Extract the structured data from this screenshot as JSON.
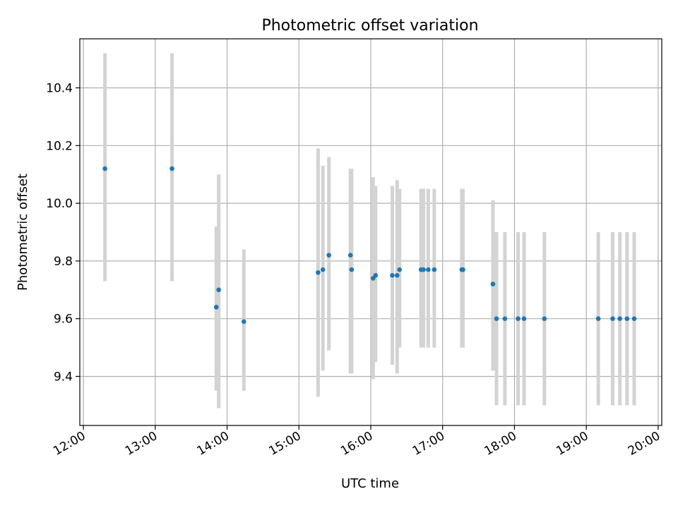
{
  "chart_data": {
    "type": "scatter",
    "title": "Photometric offset variation",
    "xlabel": "UTC time",
    "ylabel": "Photometric offset",
    "x_type": "time",
    "xlim": [
      "11:57",
      "20:03"
    ],
    "ylim": [
      9.23,
      10.57
    ],
    "grid": true,
    "x_ticks": [
      "12:00",
      "13:00",
      "14:00",
      "15:00",
      "16:00",
      "17:00",
      "18:00",
      "19:00",
      "20:00"
    ],
    "y_ticks": [
      9.4,
      9.6,
      9.8,
      10.0,
      10.2,
      10.4
    ],
    "y_tick_labels": [
      "9.4",
      "9.6",
      "9.8",
      "10.0",
      "10.2",
      "10.4"
    ],
    "colors": {
      "points": "#1f77b4",
      "error_bars": "#d3d3d3"
    },
    "series": [
      {
        "points": [
          {
            "x": "12:18",
            "y": 10.12,
            "ylow": 9.73,
            "yhigh": 10.52
          },
          {
            "x": "13:14",
            "y": 10.12,
            "ylow": 9.73,
            "yhigh": 10.52
          },
          {
            "x": "13:51",
            "y": 9.64,
            "ylow": 9.35,
            "yhigh": 9.92
          },
          {
            "x": "13:53",
            "y": 9.7,
            "ylow": 9.29,
            "yhigh": 10.1
          },
          {
            "x": "14:14",
            "y": 9.59,
            "ylow": 9.35,
            "yhigh": 9.84
          },
          {
            "x": "15:16",
            "y": 9.76,
            "ylow": 9.33,
            "yhigh": 10.19
          },
          {
            "x": "15:20",
            "y": 9.77,
            "ylow": 9.42,
            "yhigh": 10.13
          },
          {
            "x": "15:25",
            "y": 9.82,
            "ylow": 9.49,
            "yhigh": 10.16
          },
          {
            "x": "15:43",
            "y": 9.82,
            "ylow": 9.41,
            "yhigh": 10.12
          },
          {
            "x": "15:44",
            "y": 9.77,
            "ylow": 9.41,
            "yhigh": 10.12
          },
          {
            "x": "16:02",
            "y": 9.74,
            "ylow": 9.39,
            "yhigh": 10.09
          },
          {
            "x": "16:04",
            "y": 9.75,
            "ylow": 9.45,
            "yhigh": 10.06
          },
          {
            "x": "16:18",
            "y": 9.75,
            "ylow": 9.44,
            "yhigh": 10.06
          },
          {
            "x": "16:22",
            "y": 9.75,
            "ylow": 9.41,
            "yhigh": 10.08
          },
          {
            "x": "16:24",
            "y": 9.77,
            "ylow": 9.5,
            "yhigh": 10.05
          },
          {
            "x": "16:42",
            "y": 9.77,
            "ylow": 9.5,
            "yhigh": 10.05
          },
          {
            "x": "16:44",
            "y": 9.77,
            "ylow": 9.5,
            "yhigh": 10.05
          },
          {
            "x": "16:48",
            "y": 9.77,
            "ylow": 9.5,
            "yhigh": 10.05
          },
          {
            "x": "16:53",
            "y": 9.77,
            "ylow": 9.5,
            "yhigh": 10.05
          },
          {
            "x": "17:16",
            "y": 9.77,
            "ylow": 9.5,
            "yhigh": 10.05
          },
          {
            "x": "17:17",
            "y": 9.77,
            "ylow": 9.5,
            "yhigh": 10.05
          },
          {
            "x": "17:42",
            "y": 9.72,
            "ylow": 9.42,
            "yhigh": 10.01
          },
          {
            "x": "17:45",
            "y": 9.6,
            "ylow": 9.3,
            "yhigh": 9.9
          },
          {
            "x": "17:52",
            "y": 9.6,
            "ylow": 9.3,
            "yhigh": 9.9
          },
          {
            "x": "18:03",
            "y": 9.6,
            "ylow": 9.3,
            "yhigh": 9.9
          },
          {
            "x": "18:08",
            "y": 9.6,
            "ylow": 9.3,
            "yhigh": 9.9
          },
          {
            "x": "18:25",
            "y": 9.6,
            "ylow": 9.3,
            "yhigh": 9.9
          },
          {
            "x": "19:10",
            "y": 9.6,
            "ylow": 9.3,
            "yhigh": 9.9
          },
          {
            "x": "19:22",
            "y": 9.6,
            "ylow": 9.3,
            "yhigh": 9.9
          },
          {
            "x": "19:28",
            "y": 9.6,
            "ylow": 9.3,
            "yhigh": 9.9
          },
          {
            "x": "19:34",
            "y": 9.6,
            "ylow": 9.3,
            "yhigh": 9.9
          },
          {
            "x": "19:40",
            "y": 9.6,
            "ylow": 9.3,
            "yhigh": 9.9
          }
        ]
      }
    ]
  }
}
